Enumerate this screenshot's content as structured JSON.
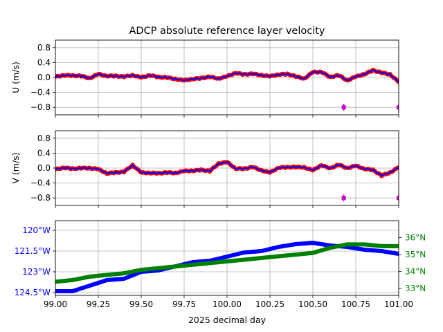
{
  "figure": {
    "title": "ADCP absolute reference layer velocity",
    "xlabel": "2025 decimal day"
  },
  "colors": {
    "u_v_points": "#ff0000",
    "u_v_line": "#0000ff",
    "marker": "#cc00cc",
    "lon": "#0000ff",
    "lat": "#008000",
    "grid": "#b0b0b0",
    "axis": "#000000"
  },
  "chart_data": [
    {
      "type": "line",
      "panel": "u",
      "ylabel": "U (m/s)",
      "xlim": [
        99.0,
        101.0
      ],
      "ylim": [
        -1.0,
        1.0
      ],
      "yticks": [
        0.8,
        0.4,
        0.0,
        -0.4,
        -0.8
      ],
      "ytick_labels": [
        "0.8",
        "0.4",
        "0.0",
        "−0.4",
        "−0.8"
      ],
      "grid": true,
      "x": [
        99.0,
        99.05,
        99.1,
        99.15,
        99.2,
        99.25,
        99.3,
        99.35,
        99.4,
        99.45,
        99.5,
        99.55,
        99.6,
        99.65,
        99.7,
        99.75,
        99.8,
        99.85,
        99.9,
        99.95,
        100.0,
        100.05,
        100.1,
        100.15,
        100.2,
        100.25,
        100.3,
        100.35,
        100.4,
        100.45,
        100.5,
        100.55,
        100.6,
        100.65,
        100.7,
        100.75,
        100.8,
        100.85,
        100.9,
        100.95,
        101.0
      ],
      "series": [
        {
          "values": [
            0.02,
            0.06,
            0.05,
            0.04,
            -0.02,
            0.09,
            0.04,
            0.04,
            0.02,
            0.06,
            0.0,
            0.06,
            0.01,
            0.0,
            -0.04,
            -0.08,
            -0.04,
            -0.02,
            0.02,
            -0.03,
            0.03,
            0.12,
            0.08,
            0.1,
            0.06,
            0.03,
            0.08,
            0.09,
            0.03,
            -0.03,
            0.14,
            0.15,
            0.01,
            0.06,
            -0.08,
            0.02,
            0.09,
            0.19,
            0.13,
            0.08,
            -0.12
          ]
        }
      ],
      "markers": [
        {
          "x": 100.68,
          "y": -0.8
        },
        {
          "x": 101.0,
          "y": -0.8
        }
      ]
    },
    {
      "type": "line",
      "panel": "v",
      "ylabel": "V (m/s)",
      "xlim": [
        99.0,
        101.0
      ],
      "ylim": [
        -1.0,
        1.0
      ],
      "yticks": [
        0.8,
        0.4,
        0.0,
        -0.4,
        -0.8
      ],
      "ytick_labels": [
        "0.8",
        "0.4",
        "0.0",
        "−0.4",
        "−0.8"
      ],
      "grid": true,
      "x": [
        99.0,
        99.05,
        99.1,
        99.15,
        99.2,
        99.25,
        99.3,
        99.35,
        99.4,
        99.45,
        99.5,
        99.55,
        99.6,
        99.65,
        99.7,
        99.75,
        99.8,
        99.85,
        99.9,
        99.95,
        100.0,
        100.05,
        100.1,
        100.15,
        100.2,
        100.25,
        100.3,
        100.35,
        100.4,
        100.45,
        100.5,
        100.55,
        100.6,
        100.65,
        100.7,
        100.75,
        100.8,
        100.85,
        100.9,
        100.95,
        101.0
      ],
      "series": [
        {
          "values": [
            -0.03,
            0.01,
            -0.02,
            0.0,
            0.0,
            -0.03,
            -0.14,
            -0.12,
            -0.1,
            0.08,
            -0.12,
            -0.13,
            -0.14,
            -0.12,
            -0.13,
            -0.08,
            -0.07,
            -0.05,
            -0.08,
            0.12,
            0.16,
            -0.01,
            -0.02,
            0.03,
            -0.06,
            -0.12,
            0.01,
            0.02,
            0.03,
            0.02,
            -0.06,
            0.08,
            -0.01,
            0.09,
            0.0,
            0.06,
            -0.02,
            -0.05,
            -0.2,
            -0.12,
            0.02
          ]
        }
      ],
      "markers": [
        {
          "x": 100.68,
          "y": -0.8
        },
        {
          "x": 101.0,
          "y": -0.8
        }
      ]
    },
    {
      "type": "line",
      "panel": "position",
      "xlim": [
        99.0,
        101.0
      ],
      "xticks": [
        99.0,
        99.25,
        99.5,
        99.75,
        100.0,
        100.25,
        100.5,
        100.75,
        101.0
      ],
      "xtick_labels": [
        "99.00",
        "99.25",
        "99.50",
        "99.75",
        "100.00",
        "100.25",
        "100.50",
        "100.75",
        "101.00"
      ],
      "grid": true,
      "lon_axis": {
        "side": "left",
        "ylim": [
          -124.7,
          -119.3
        ],
        "yticks": [
          -120.0,
          -121.5,
          -123.0,
          -124.5
        ],
        "ytick_labels": [
          "120°W",
          "121.5°W",
          "123°W",
          "124.5°W"
        ]
      },
      "lat_axis": {
        "side": "right",
        "ylim": [
          32.6,
          37.0
        ],
        "yticks": [
          36.0,
          35.0,
          34.0,
          33.0
        ],
        "ytick_labels": [
          "36°N",
          "35°N",
          "34°N",
          "33°N"
        ]
      },
      "x": [
        99.0,
        99.1,
        99.2,
        99.3,
        99.4,
        99.5,
        99.6,
        99.7,
        99.8,
        99.9,
        100.0,
        100.1,
        100.2,
        100.3,
        100.4,
        100.5,
        100.6,
        100.7,
        100.8,
        100.9,
        101.0
      ],
      "series": [
        {
          "axis": "lon",
          "values": [
            -124.4,
            -124.4,
            -124.0,
            -123.6,
            -123.5,
            -123.0,
            -122.9,
            -122.6,
            -122.3,
            -122.2,
            -121.9,
            -121.6,
            -121.5,
            -121.2,
            -121.0,
            -120.9,
            -121.1,
            -121.2,
            -121.4,
            -121.5,
            -121.7
          ]
        },
        {
          "axis": "lat",
          "values": [
            33.4,
            33.5,
            33.7,
            33.8,
            33.9,
            34.1,
            34.2,
            34.3,
            34.4,
            34.5,
            34.6,
            34.7,
            34.8,
            34.9,
            35.0,
            35.1,
            35.4,
            35.6,
            35.6,
            35.5,
            35.5
          ]
        }
      ]
    }
  ]
}
